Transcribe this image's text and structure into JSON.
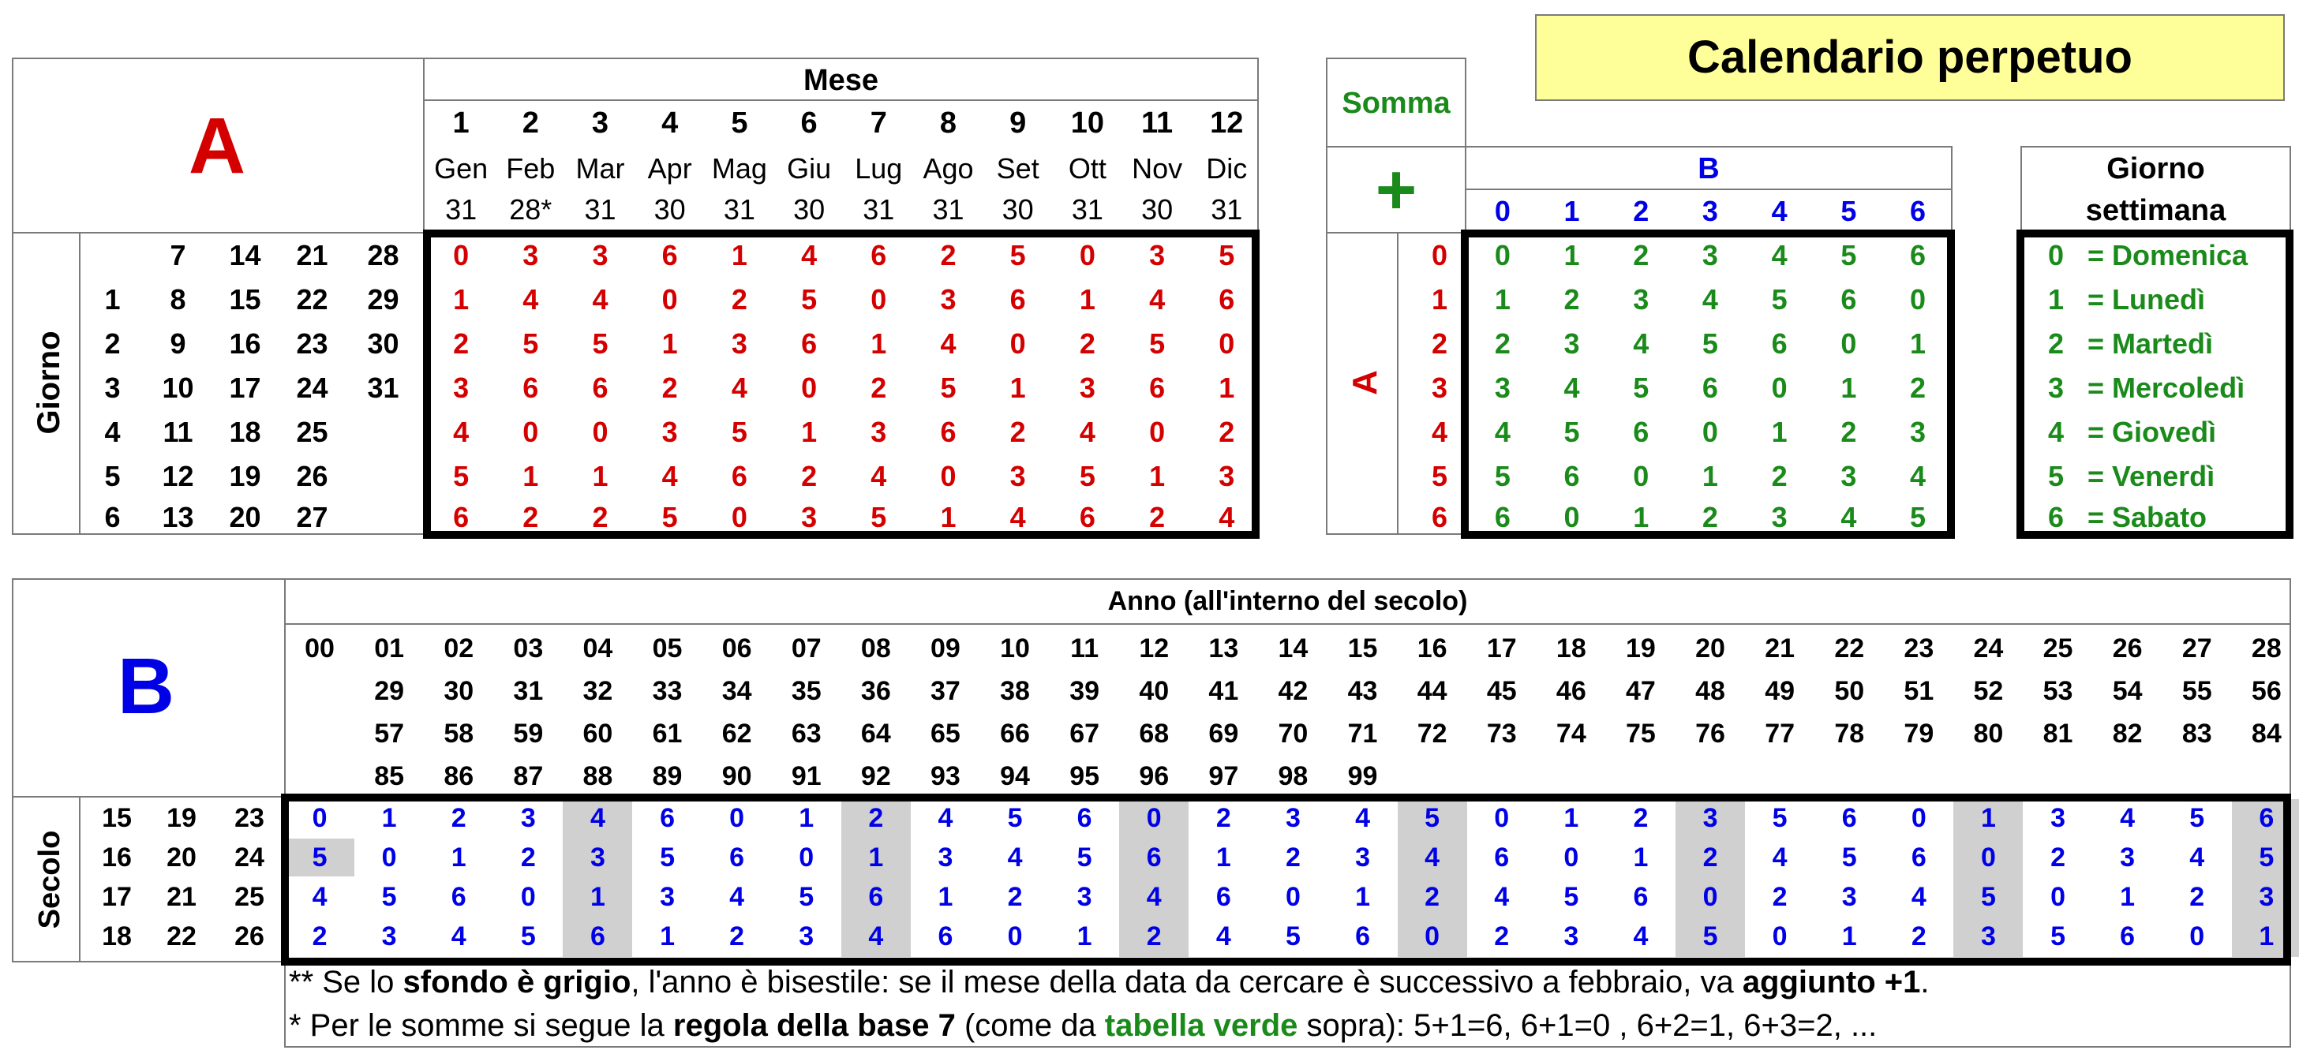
{
  "title": "Calendario perpetuo",
  "table_a": {
    "big_label": "A",
    "mese_header": "Mese",
    "month_numbers": [
      "1",
      "2",
      "3",
      "4",
      "5",
      "6",
      "7",
      "8",
      "9",
      "10",
      "11",
      "12"
    ],
    "month_names": [
      "Gen",
      "Feb",
      "Mar",
      "Apr",
      "Mag",
      "Giu",
      "Lug",
      "Ago",
      "Set",
      "Ott",
      "Nov",
      "Dic"
    ],
    "month_days": [
      "31",
      "28*",
      "31",
      "30",
      "31",
      "30",
      "31",
      "31",
      "30",
      "31",
      "30",
      "31"
    ],
    "giorno_label": "Giorno",
    "day_rows": [
      [
        "",
        "7",
        "14",
        "21",
        "28"
      ],
      [
        "1",
        "8",
        "15",
        "22",
        "29"
      ],
      [
        "2",
        "9",
        "16",
        "23",
        "30"
      ],
      [
        "3",
        "10",
        "17",
        "24",
        "31"
      ],
      [
        "4",
        "11",
        "18",
        "25",
        ""
      ],
      [
        "5",
        "12",
        "19",
        "26",
        ""
      ],
      [
        "6",
        "13",
        "20",
        "27",
        ""
      ]
    ],
    "values": [
      [
        "0",
        "3",
        "3",
        "6",
        "1",
        "4",
        "6",
        "2",
        "5",
        "0",
        "3",
        "5"
      ],
      [
        "1",
        "4",
        "4",
        "0",
        "2",
        "5",
        "0",
        "3",
        "6",
        "1",
        "4",
        "6"
      ],
      [
        "2",
        "5",
        "5",
        "1",
        "3",
        "6",
        "1",
        "4",
        "0",
        "2",
        "5",
        "0"
      ],
      [
        "3",
        "6",
        "6",
        "2",
        "4",
        "0",
        "2",
        "5",
        "1",
        "3",
        "6",
        "1"
      ],
      [
        "4",
        "0",
        "0",
        "3",
        "5",
        "1",
        "3",
        "6",
        "2",
        "4",
        "0",
        "2"
      ],
      [
        "5",
        "1",
        "1",
        "4",
        "6",
        "2",
        "4",
        "0",
        "3",
        "5",
        "1",
        "3"
      ],
      [
        "6",
        "2",
        "2",
        "5",
        "0",
        "3",
        "5",
        "1",
        "4",
        "6",
        "2",
        "4"
      ]
    ]
  },
  "somma": {
    "label": "Somma",
    "plus": "+",
    "b_label": "B",
    "b_cols": [
      "0",
      "1",
      "2",
      "3",
      "4",
      "5",
      "6"
    ],
    "a_label": "A",
    "a_rows": [
      "0",
      "1",
      "2",
      "3",
      "4",
      "5",
      "6"
    ],
    "values": [
      [
        "0",
        "1",
        "2",
        "3",
        "4",
        "5",
        "6"
      ],
      [
        "1",
        "2",
        "3",
        "4",
        "5",
        "6",
        "0"
      ],
      [
        "2",
        "3",
        "4",
        "5",
        "6",
        "0",
        "1"
      ],
      [
        "3",
        "4",
        "5",
        "6",
        "0",
        "1",
        "2"
      ],
      [
        "4",
        "5",
        "6",
        "0",
        "1",
        "2",
        "3"
      ],
      [
        "5",
        "6",
        "0",
        "1",
        "2",
        "3",
        "4"
      ],
      [
        "6",
        "0",
        "1",
        "2",
        "3",
        "4",
        "5"
      ]
    ]
  },
  "giorno_settimana": {
    "header_line1": "Giorno",
    "header_line2": "settimana",
    "rows": [
      {
        "n": "0",
        "name": "= Domenica"
      },
      {
        "n": "1",
        "name": "= Lunedì"
      },
      {
        "n": "2",
        "name": "= Martedì"
      },
      {
        "n": "3",
        "name": "= Mercoledì"
      },
      {
        "n": "4",
        "name": "= Giovedì"
      },
      {
        "n": "5",
        "name": "= Venerdì"
      },
      {
        "n": "6",
        "name": "= Sabato"
      }
    ]
  },
  "table_b": {
    "big_label": "B",
    "anno_header": "Anno (all'interno del secolo)",
    "year_rows": [
      [
        "00",
        "01",
        "02",
        "03",
        "04",
        "05",
        "06",
        "07",
        "08",
        "09",
        "10",
        "11",
        "12",
        "13",
        "14",
        "15",
        "16",
        "17",
        "18",
        "19",
        "20",
        "21",
        "22",
        "23",
        "24",
        "25",
        "26",
        "27",
        "28"
      ],
      [
        "",
        "29",
        "30",
        "31",
        "32",
        "33",
        "34",
        "35",
        "36",
        "37",
        "38",
        "39",
        "40",
        "41",
        "42",
        "43",
        "44",
        "45",
        "46",
        "47",
        "48",
        "49",
        "50",
        "51",
        "52",
        "53",
        "54",
        "55",
        "56"
      ],
      [
        "",
        "57",
        "58",
        "59",
        "60",
        "61",
        "62",
        "63",
        "64",
        "65",
        "66",
        "67",
        "68",
        "69",
        "70",
        "71",
        "72",
        "73",
        "74",
        "75",
        "76",
        "77",
        "78",
        "79",
        "80",
        "81",
        "82",
        "83",
        "84"
      ],
      [
        "",
        "85",
        "86",
        "87",
        "88",
        "89",
        "90",
        "91",
        "92",
        "93",
        "94",
        "95",
        "96",
        "97",
        "98",
        "99",
        "",
        "",
        "",
        "",
        "",
        "",
        "",
        "",
        "",
        "",
        "",
        "",
        ""
      ]
    ],
    "secolo_label": "Secolo",
    "century_rows": [
      [
        "15",
        "19",
        "23"
      ],
      [
        "16",
        "20",
        "24"
      ],
      [
        "17",
        "21",
        "25"
      ],
      [
        "18",
        "22",
        "26"
      ]
    ],
    "values": [
      [
        "0",
        "1",
        "2",
        "3",
        "4",
        "6",
        "0",
        "1",
        "2",
        "4",
        "5",
        "6",
        "0",
        "2",
        "3",
        "4",
        "5",
        "0",
        "1",
        "2",
        "3",
        "5",
        "6",
        "0",
        "1",
        "3",
        "4",
        "5",
        "6"
      ],
      [
        "5",
        "0",
        "1",
        "2",
        "3",
        "5",
        "6",
        "0",
        "1",
        "3",
        "4",
        "5",
        "6",
        "1",
        "2",
        "3",
        "4",
        "6",
        "0",
        "1",
        "2",
        "4",
        "5",
        "6",
        "0",
        "2",
        "3",
        "4",
        "5"
      ],
      [
        "4",
        "5",
        "6",
        "0",
        "1",
        "3",
        "4",
        "5",
        "6",
        "1",
        "2",
        "3",
        "4",
        "6",
        "0",
        "1",
        "2",
        "4",
        "5",
        "6",
        "0",
        "2",
        "3",
        "4",
        "5",
        "0",
        "1",
        "2",
        "3"
      ],
      [
        "2",
        "3",
        "4",
        "5",
        "6",
        "1",
        "2",
        "3",
        "4",
        "6",
        "0",
        "1",
        "2",
        "4",
        "5",
        "6",
        "0",
        "2",
        "3",
        "4",
        "5",
        "0",
        "1",
        "2",
        "3",
        "5",
        "6",
        "0",
        "1"
      ]
    ],
    "gray_columns": [
      4,
      8,
      12,
      16,
      20,
      24,
      28
    ],
    "gray_extra": {
      "row": 1,
      "col": 0
    }
  },
  "notes": {
    "note1_a": "** Se lo ",
    "note1_b": "sfondo è grigio",
    "note1_c": ", l'anno è bisestile: se il mese della data da cercare è successivo a febbraio, va ",
    "note1_d": "aggiunto +1",
    "note1_e": ".",
    "note2_a": "* Per le somme si segue la ",
    "note2_b": "regola della base 7",
    "note2_c": " (come da ",
    "note2_d": "tabella verde",
    "note2_e": " sopra):  5+1=6,   6+1=0 ,  6+2=1,    6+3=2,    ..."
  },
  "colors": {
    "red": "#d40000",
    "green": "#1a8a1a",
    "blue": "#0000e6",
    "gray": "#d0d0d0",
    "title_bg": "#ffff99"
  }
}
